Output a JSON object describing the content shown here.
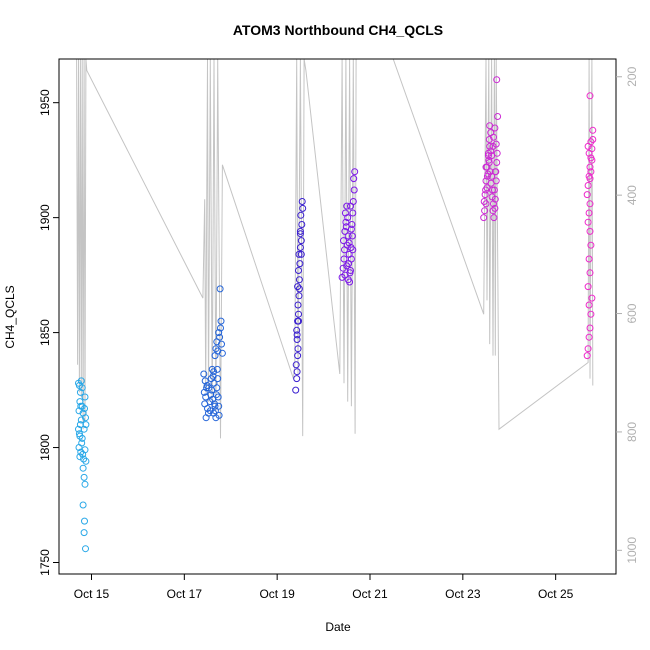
{
  "chart_data": {
    "type": "scatter",
    "title": "ATOM3 Northbound CH4_QCLS",
    "xlabel": "Date",
    "ylabel": "CH4_QCLS",
    "x_unit": "days in October",
    "xlim": [
      14.3,
      26.3
    ],
    "ylim": [
      1745,
      1969
    ],
    "y2lim": [
      1040,
      170
    ],
    "x_ticks": [
      15,
      17,
      19,
      21,
      23,
      25
    ],
    "x_tick_labels": [
      "Oct 15",
      "Oct 17",
      "Oct 19",
      "Oct 21",
      "Oct 23",
      "Oct 25"
    ],
    "y_ticks": [
      1750,
      1800,
      1850,
      1900,
      1950
    ],
    "y_tick_labels": [
      "1750",
      "1800",
      "1850",
      "1900",
      "1950"
    ],
    "y2_ticks": [
      200,
      400,
      600,
      800,
      1000
    ],
    "y2_tick_labels": [
      "200",
      "400",
      "600",
      "800",
      "1000"
    ],
    "grid": false,
    "colors": {
      "flight1": "#29a8e8",
      "flight2": "#2565d8",
      "flight3": "#3a1fd0",
      "flight4": "#7d18e8",
      "flight5": "#cc2ad4",
      "flight6": "#ee28cc",
      "pressure_line": "#c4c4c4"
    },
    "series": [
      {
        "values": [
          [
            14.72,
            1828
          ],
          [
            14.74,
            1827
          ],
          [
            14.76,
            1824
          ],
          [
            14.75,
            1820
          ],
          [
            14.77,
            1818
          ],
          [
            14.73,
            1816
          ],
          [
            14.78,
            1812
          ],
          [
            14.76,
            1810
          ],
          [
            14.72,
            1808
          ],
          [
            14.74,
            1806
          ],
          [
            14.75,
            1805
          ],
          [
            14.8,
            1804
          ],
          [
            14.79,
            1802
          ],
          [
            14.73,
            1800
          ],
          [
            14.77,
            1798
          ],
          [
            14.75,
            1796
          ],
          [
            14.81,
            1797
          ],
          [
            14.83,
            1795
          ],
          [
            14.86,
            1799
          ],
          [
            14.88,
            1794
          ],
          [
            14.82,
            1791
          ],
          [
            14.84,
            1787
          ],
          [
            14.86,
            1784
          ],
          [
            14.8,
            1818
          ],
          [
            14.82,
            1815
          ],
          [
            14.85,
            1817
          ],
          [
            14.87,
            1813
          ],
          [
            14.88,
            1810
          ],
          [
            14.84,
            1808
          ],
          [
            14.86,
            1822
          ],
          [
            14.78,
            1829
          ],
          [
            14.8,
            1826
          ],
          [
            14.82,
            1775
          ],
          [
            14.85,
            1768
          ],
          [
            14.84,
            1763
          ],
          [
            14.87,
            1756
          ]
        ]
      },
      {
        "values": [
          [
            17.42,
            1832
          ],
          [
            17.45,
            1829
          ],
          [
            17.48,
            1826
          ],
          [
            17.46,
            1822
          ],
          [
            17.44,
            1819
          ],
          [
            17.5,
            1817
          ],
          [
            17.52,
            1815
          ],
          [
            17.47,
            1813
          ],
          [
            17.55,
            1820
          ],
          [
            17.57,
            1823
          ],
          [
            17.53,
            1826
          ],
          [
            17.58,
            1830
          ],
          [
            17.6,
            1834
          ],
          [
            17.62,
            1831
          ],
          [
            17.64,
            1828
          ],
          [
            17.59,
            1825
          ],
          [
            17.61,
            1821
          ],
          [
            17.66,
            1818
          ],
          [
            17.63,
            1815
          ],
          [
            17.68,
            1813
          ],
          [
            17.67,
            1816
          ],
          [
            17.65,
            1819
          ],
          [
            17.69,
            1823
          ],
          [
            17.7,
            1826
          ],
          [
            17.72,
            1830
          ],
          [
            17.71,
            1834
          ],
          [
            17.73,
            1822
          ],
          [
            17.74,
            1818
          ],
          [
            17.75,
            1814
          ],
          [
            17.66,
            1840
          ],
          [
            17.68,
            1843
          ],
          [
            17.7,
            1846
          ],
          [
            17.72,
            1842
          ],
          [
            17.74,
            1850
          ],
          [
            17.76,
            1848
          ],
          [
            17.78,
            1852
          ],
          [
            17.79,
            1855
          ],
          [
            17.8,
            1845
          ],
          [
            17.82,
            1841
          ],
          [
            17.77,
            1869
          ],
          [
            17.43,
            1824
          ],
          [
            17.49,
            1827
          ],
          [
            17.56,
            1816
          ],
          [
            17.63,
            1833
          ]
        ]
      },
      {
        "values": [
          [
            19.4,
            1825
          ],
          [
            19.42,
            1830
          ],
          [
            19.43,
            1833
          ],
          [
            19.41,
            1836
          ],
          [
            19.44,
            1840
          ],
          [
            19.45,
            1843
          ],
          [
            19.43,
            1847
          ],
          [
            19.42,
            1851
          ],
          [
            19.44,
            1855
          ],
          [
            19.46,
            1858
          ],
          [
            19.45,
            1862
          ],
          [
            19.47,
            1866
          ],
          [
            19.44,
            1870
          ],
          [
            19.48,
            1873
          ],
          [
            19.46,
            1877
          ],
          [
            19.49,
            1880
          ],
          [
            19.47,
            1884
          ],
          [
            19.5,
            1887
          ],
          [
            19.52,
            1890
          ],
          [
            19.5,
            1894
          ],
          [
            19.53,
            1897
          ],
          [
            19.51,
            1901
          ],
          [
            19.55,
            1904
          ],
          [
            19.54,
            1907
          ],
          [
            19.52,
            1884
          ],
          [
            19.5,
            1893
          ],
          [
            19.48,
            1869
          ],
          [
            19.46,
            1855
          ],
          [
            19.43,
            1849
          ]
        ]
      },
      {
        "values": [
          [
            20.4,
            1874
          ],
          [
            20.42,
            1878
          ],
          [
            20.44,
            1882
          ],
          [
            20.45,
            1886
          ],
          [
            20.43,
            1890
          ],
          [
            20.46,
            1894
          ],
          [
            20.48,
            1898
          ],
          [
            20.47,
            1902
          ],
          [
            20.5,
            1905
          ],
          [
            20.52,
            1900
          ],
          [
            20.49,
            1896
          ],
          [
            20.53,
            1892
          ],
          [
            20.51,
            1888
          ],
          [
            20.55,
            1884
          ],
          [
            20.54,
            1880
          ],
          [
            20.57,
            1876
          ],
          [
            20.56,
            1872
          ],
          [
            20.58,
            1877
          ],
          [
            20.6,
            1882
          ],
          [
            20.59,
            1887
          ],
          [
            20.62,
            1892
          ],
          [
            20.61,
            1897
          ],
          [
            20.63,
            1902
          ],
          [
            20.64,
            1907
          ],
          [
            20.66,
            1912
          ],
          [
            20.65,
            1917
          ],
          [
            20.67,
            1920
          ],
          [
            20.63,
            1886
          ],
          [
            20.6,
            1895
          ],
          [
            20.58,
            1905
          ],
          [
            20.55,
            1889
          ],
          [
            20.53,
            1873
          ],
          [
            20.5,
            1879
          ],
          [
            20.46,
            1875
          ]
        ]
      },
      {
        "values": [
          [
            23.45,
            1900
          ],
          [
            23.47,
            1903
          ],
          [
            23.5,
            1906
          ],
          [
            23.48,
            1910
          ],
          [
            23.52,
            1913
          ],
          [
            23.5,
            1916
          ],
          [
            23.54,
            1919
          ],
          [
            23.52,
            1922
          ],
          [
            23.56,
            1925
          ],
          [
            23.55,
            1928
          ],
          [
            23.58,
            1931
          ],
          [
            23.57,
            1934
          ],
          [
            23.6,
            1937
          ],
          [
            23.59,
            1920
          ],
          [
            23.62,
            1918
          ],
          [
            23.61,
            1915
          ],
          [
            23.64,
            1912
          ],
          [
            23.63,
            1909
          ],
          [
            23.66,
            1906
          ],
          [
            23.65,
            1903
          ],
          [
            23.67,
            1900
          ],
          [
            23.69,
            1904
          ],
          [
            23.7,
            1908
          ],
          [
            23.68,
            1912
          ],
          [
            23.72,
            1916
          ],
          [
            23.71,
            1920
          ],
          [
            23.73,
            1924
          ],
          [
            23.74,
            1928
          ],
          [
            23.72,
            1932
          ],
          [
            23.75,
            1944
          ],
          [
            23.69,
            1939
          ],
          [
            23.66,
            1935
          ],
          [
            23.6,
            1929
          ],
          [
            23.57,
            1924
          ],
          [
            23.53,
            1918
          ],
          [
            23.49,
            1912
          ],
          [
            23.46,
            1907
          ],
          [
            23.58,
            1940
          ],
          [
            23.62,
            1927
          ],
          [
            23.7,
            1920
          ],
          [
            23.65,
            1931
          ],
          [
            23.55,
            1927
          ],
          [
            23.5,
            1922
          ],
          [
            23.73,
            1960
          ]
        ]
      },
      {
        "values": [
          [
            25.68,
            1840
          ],
          [
            25.7,
            1843
          ],
          [
            25.72,
            1848
          ],
          [
            25.74,
            1852
          ],
          [
            25.76,
            1858
          ],
          [
            25.72,
            1862
          ],
          [
            25.7,
            1870
          ],
          [
            25.74,
            1876
          ],
          [
            25.72,
            1882
          ],
          [
            25.76,
            1888
          ],
          [
            25.74,
            1894
          ],
          [
            25.7,
            1898
          ],
          [
            25.72,
            1902
          ],
          [
            25.74,
            1906
          ],
          [
            25.68,
            1910
          ],
          [
            25.7,
            1914
          ],
          [
            25.72,
            1918
          ],
          [
            25.74,
            1922
          ],
          [
            25.76,
            1926
          ],
          [
            25.78,
            1930
          ],
          [
            25.8,
            1934
          ],
          [
            25.8,
            1938
          ],
          [
            25.78,
            1925
          ],
          [
            25.76,
            1920
          ],
          [
            25.74,
            1917
          ],
          [
            25.72,
            1928
          ],
          [
            25.7,
            1931
          ],
          [
            25.76,
            1933
          ],
          [
            25.74,
            1953
          ],
          [
            25.78,
            1865
          ]
        ]
      }
    ],
    "pressure_path": [
      [
        14.68,
        1969
      ],
      [
        14.7,
        1836
      ],
      [
        14.72,
        1969
      ],
      [
        14.74,
        1824
      ],
      [
        14.76,
        1969
      ],
      [
        14.78,
        1822
      ],
      [
        14.8,
        1969
      ],
      [
        14.82,
        1808
      ],
      [
        14.84,
        1969
      ],
      [
        14.86,
        1812
      ],
      [
        14.88,
        1969
      ],
      [
        14.9,
        1964
      ],
      [
        17.4,
        1865
      ],
      [
        17.44,
        1908
      ],
      [
        17.46,
        1824
      ],
      [
        17.5,
        1969
      ],
      [
        17.52,
        1820
      ],
      [
        17.56,
        1969
      ],
      [
        17.6,
        1818
      ],
      [
        17.64,
        1969
      ],
      [
        17.68,
        1816
      ],
      [
        17.72,
        1969
      ],
      [
        17.78,
        1804
      ],
      [
        17.82,
        1923
      ],
      [
        19.35,
        1830
      ],
      [
        19.38,
        1836
      ],
      [
        19.42,
        1969
      ],
      [
        19.45,
        1832
      ],
      [
        19.5,
        1969
      ],
      [
        19.55,
        1805
      ],
      [
        19.58,
        1969
      ],
      [
        19.62,
        1964
      ],
      [
        20.35,
        1832
      ],
      [
        20.4,
        1969
      ],
      [
        20.44,
        1828
      ],
      [
        20.48,
        1969
      ],
      [
        20.52,
        1820
      ],
      [
        20.56,
        1969
      ],
      [
        20.6,
        1818
      ],
      [
        20.64,
        1969
      ],
      [
        20.68,
        1806
      ],
      [
        20.7,
        1969
      ],
      [
        21.5,
        1969
      ],
      [
        23.45,
        1858
      ],
      [
        23.5,
        1969
      ],
      [
        23.52,
        1864
      ],
      [
        23.56,
        1969
      ],
      [
        23.58,
        1845
      ],
      [
        23.62,
        1969
      ],
      [
        23.65,
        1840
      ],
      [
        23.68,
        1969
      ],
      [
        23.7,
        1840
      ],
      [
        23.72,
        1969
      ],
      [
        23.78,
        1808
      ],
      [
        25.7,
        1837
      ],
      [
        25.72,
        1969
      ],
      [
        25.74,
        1830
      ],
      [
        25.78,
        1969
      ],
      [
        25.8,
        1827
      ]
    ]
  }
}
